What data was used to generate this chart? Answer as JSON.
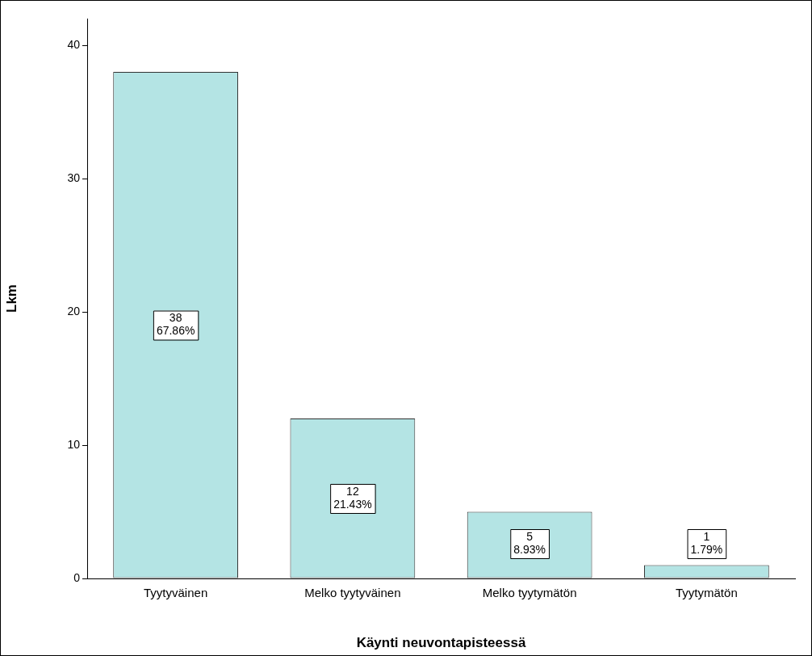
{
  "chart_data": {
    "type": "bar",
    "xlabel": "Käynti neuvontapisteessä",
    "ylabel": "Lkm",
    "categories": [
      "Tyytyväinen",
      "Melko tyytyväinen",
      "Melko tyytymätön",
      "Tyytymätön"
    ],
    "values": [
      38,
      12,
      5,
      1
    ],
    "color": "#b4e4e4",
    "value_labels": [
      "38\n67.86%",
      "12\n21.43%",
      "5\n8.93%",
      "1\n1.79%"
    ],
    "ylim": [
      0,
      42
    ],
    "yticks": [
      0,
      10,
      20,
      30,
      40
    ],
    "grid": false,
    "legend": false
  }
}
